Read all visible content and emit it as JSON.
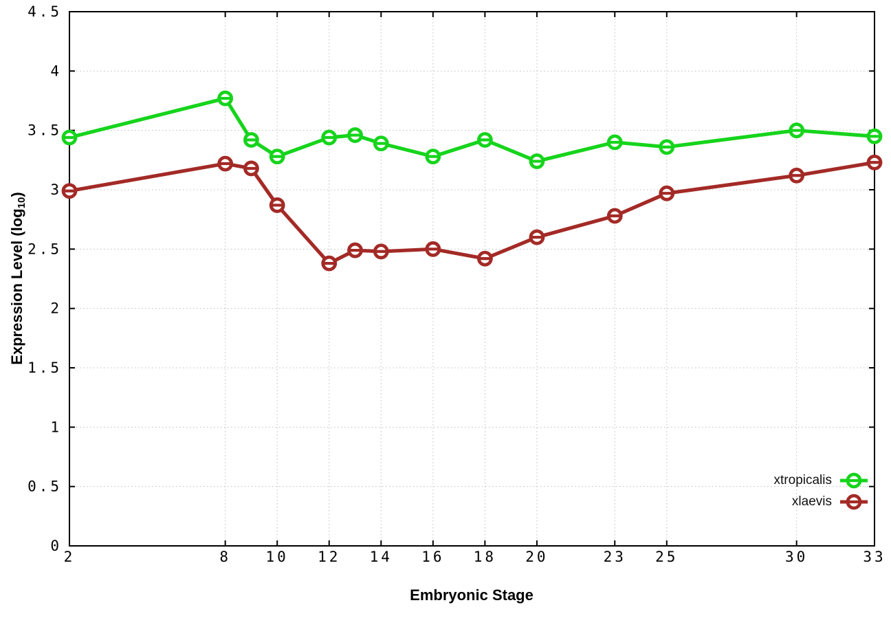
{
  "chart_data": {
    "type": "line",
    "title": "",
    "xlabel": "Embryonic Stage",
    "ylabel": "Expression Level (log10)",
    "ylabel_parts": {
      "pre": "Expression Level (log",
      "sub": "10",
      "post": ")"
    },
    "xlim": [
      2,
      33
    ],
    "ylim": [
      0,
      4.5
    ],
    "grid": true,
    "grid_style": "dotted",
    "legend_position": "inside-bottom-right",
    "marker": "open-circle-with-horizontal-bar",
    "x_tick_labels": [
      "2",
      "8",
      "10",
      "12",
      "14",
      "16",
      "18",
      "20",
      "23",
      "25",
      "30",
      "33"
    ],
    "x_tick_values": [
      2,
      8,
      10,
      12,
      14,
      16,
      18,
      20,
      23,
      25,
      30,
      33
    ],
    "y_tick_labels": [
      "0",
      "0.5",
      "1",
      "1.5",
      "2",
      "2.5",
      "3",
      "3.5",
      "4",
      "4.5"
    ],
    "y_tick_values": [
      0,
      0.5,
      1,
      1.5,
      2,
      2.5,
      3,
      3.5,
      4,
      4.5
    ],
    "x": [
      2,
      8,
      9,
      10,
      12,
      13,
      14,
      16,
      18,
      20,
      23,
      25,
      30,
      33
    ],
    "series": [
      {
        "name": "xtropicalis",
        "color": "#16d41c",
        "values": [
          3.44,
          3.77,
          3.42,
          3.28,
          3.44,
          3.46,
          3.39,
          3.28,
          3.42,
          3.24,
          3.4,
          3.36,
          3.5,
          3.45
        ]
      },
      {
        "name": "xlaevis",
        "color": "#a32a26",
        "values": [
          2.99,
          3.22,
          3.18,
          2.87,
          2.38,
          2.49,
          2.48,
          2.5,
          2.42,
          2.6,
          2.78,
          2.97,
          3.12,
          3.23
        ]
      }
    ]
  }
}
